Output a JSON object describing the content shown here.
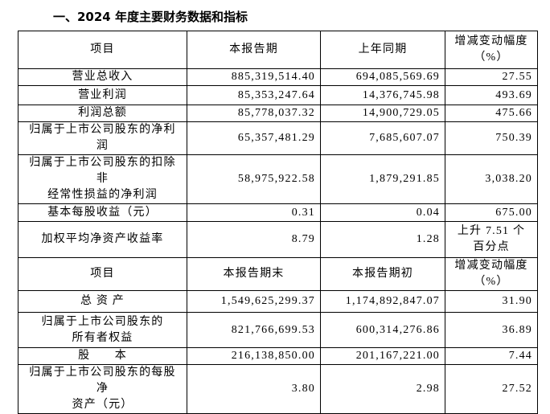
{
  "title": "一、2024 年度主要财务数据和指标",
  "table": {
    "rows": [
      [
        [
          "项目"
        ],
        [
          "本报告期"
        ],
        [
          "上年同期"
        ],
        [
          "增减变动幅度",
          "（%）"
        ]
      ],
      [
        [
          "营业总收入"
        ],
        [
          "885,319,514.40"
        ],
        [
          "694,085,569.69"
        ],
        [
          "27.55"
        ]
      ],
      [
        [
          "营业利润"
        ],
        [
          "85,353,247.64"
        ],
        [
          "14,376,745.98"
        ],
        [
          "493.69"
        ]
      ],
      [
        [
          "利润总额"
        ],
        [
          "85,778,037.32"
        ],
        [
          "14,900,729.05"
        ],
        [
          "475.66"
        ]
      ],
      [
        [
          "归属于上市公司股东的净利润"
        ],
        [
          "65,357,481.29"
        ],
        [
          "7,685,607.07"
        ],
        [
          "750.39"
        ]
      ],
      [
        [
          "归属于上市公司股东的扣除非",
          "经常性损益的净利润"
        ],
        [
          "58,975,922.58"
        ],
        [
          "1,879,291.85"
        ],
        [
          "3,038.20"
        ]
      ],
      [
        [
          "基本每股收益（元）"
        ],
        [
          "0.31"
        ],
        [
          "0.04"
        ],
        [
          "675.00"
        ]
      ],
      [
        [
          "加权平均净资产收益率"
        ],
        [
          "8.79"
        ],
        [
          "1.28"
        ],
        [
          "上升 7.51 个",
          "百分点"
        ]
      ],
      [
        [
          "项目"
        ],
        [
          "本报告期末"
        ],
        [
          "本报告期初"
        ],
        [
          "增减变动幅度",
          "（%）"
        ]
      ],
      [
        [
          "总 资 产"
        ],
        [
          "1,549,625,299.37"
        ],
        [
          "1,174,892,847.07"
        ],
        [
          "31.90"
        ]
      ],
      [
        [
          "归属于上市公司股东的",
          "所有者权益"
        ],
        [
          "821,766,699.53"
        ],
        [
          "600,314,276.86"
        ],
        [
          "36.89"
        ]
      ],
      [
        [
          "股　　本"
        ],
        [
          "216,138,850.00"
        ],
        [
          "201,167,221.00"
        ],
        [
          "7.44"
        ]
      ],
      [
        [
          "归属于上市公司股东的每股净",
          "资产（元）"
        ],
        [
          "3.80"
        ],
        [
          "2.98"
        ],
        [
          "27.52"
        ]
      ]
    ]
  }
}
